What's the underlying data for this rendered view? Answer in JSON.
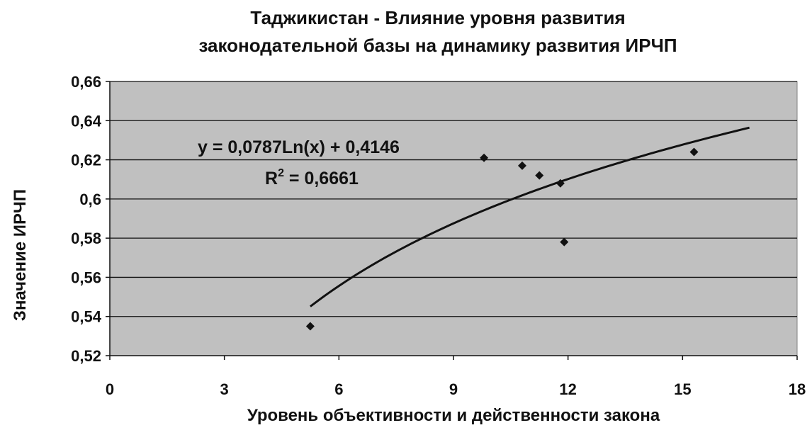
{
  "chart_data": {
    "type": "scatter",
    "title_line1": "Таджикистан - Влияние уровня развития",
    "title_line2": "законодательной базы на динамику развития  ИРЧП",
    "xlabel": "Уровень объективности и действенности  закона",
    "ylabel": "Значение ИРЧП",
    "xlim": [
      0,
      18
    ],
    "ylim": [
      0.52,
      0.66
    ],
    "x_ticks": [
      0,
      3,
      6,
      9,
      12,
      15,
      18
    ],
    "x_tick_labels": [
      "0",
      "3",
      "6",
      "9",
      "12",
      "15",
      "18"
    ],
    "y_ticks": [
      0.52,
      0.54,
      0.56,
      0.58,
      0.6,
      0.62,
      0.64,
      0.66
    ],
    "y_tick_labels": [
      "0,52",
      "0,54",
      "0,56",
      "0,58",
      "0,6",
      "0,62",
      "0,64",
      "0,66"
    ],
    "grid": "horizontal",
    "plot_background": "#c0c0c0",
    "series": [
      {
        "points": [
          {
            "x": 5.25,
            "y": 0.535
          },
          {
            "x": 9.8,
            "y": 0.621
          },
          {
            "x": 10.8,
            "y": 0.617
          },
          {
            "x": 11.25,
            "y": 0.612
          },
          {
            "x": 11.8,
            "y": 0.608
          },
          {
            "x": 11.9,
            "y": 0.578
          },
          {
            "x": 15.3,
            "y": 0.624
          }
        ],
        "marker": "diamond",
        "color": "#111111"
      }
    ],
    "trendline": {
      "type": "logarithmic",
      "a": 0.0787,
      "b": 0.4146,
      "x_range": [
        5.25,
        16.75
      ],
      "equation_label": "y = 0,0787Ln(x) + 0,4146",
      "r2_label_prefix": "R",
      "r2_label_sup": "2",
      "r2_label_value": " = 0,6661"
    }
  }
}
